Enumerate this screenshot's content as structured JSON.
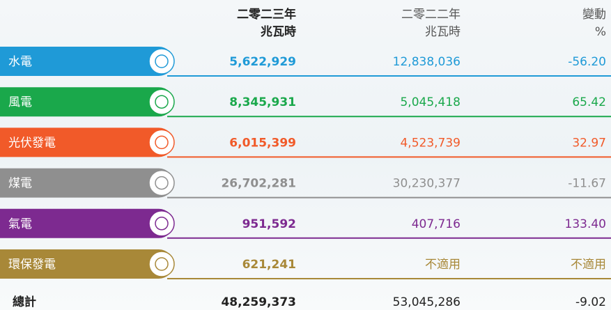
{
  "table": {
    "headers": [
      {
        "line1": "二零二三年",
        "line2": "兆瓦時"
      },
      {
        "line1": "二零二二年",
        "line2": "兆瓦時"
      },
      {
        "line1": "變動",
        "line2": "%"
      }
    ],
    "rows": [
      {
        "label": "水電",
        "color": "#1f9ad7",
        "cells": [
          "5,622,929",
          "12,838,036",
          "-56.20"
        ]
      },
      {
        "label": "風電",
        "color": "#1aa84b",
        "cells": [
          "8,345,931",
          "5,045,418",
          "65.42"
        ]
      },
      {
        "label": "光伏發電",
        "color": "#f15a29",
        "cells": [
          "6,015,399",
          "4,523,739",
          "32.97"
        ]
      },
      {
        "label": "煤電",
        "color": "#8f8f8f",
        "cells": [
          "26,702,281",
          "30,230,377",
          "-11.67"
        ]
      },
      {
        "label": "氣電",
        "color": "#7d2a90",
        "cells": [
          "951,592",
          "407,716",
          "133.40"
        ]
      },
      {
        "label": "環保發電",
        "color": "#a88838",
        "cells": [
          "621,241",
          "不適用",
          "不適用"
        ]
      }
    ],
    "total": {
      "label": "總計",
      "cells": [
        "48,259,373",
        "53,045,286",
        "-9.02"
      ]
    }
  }
}
